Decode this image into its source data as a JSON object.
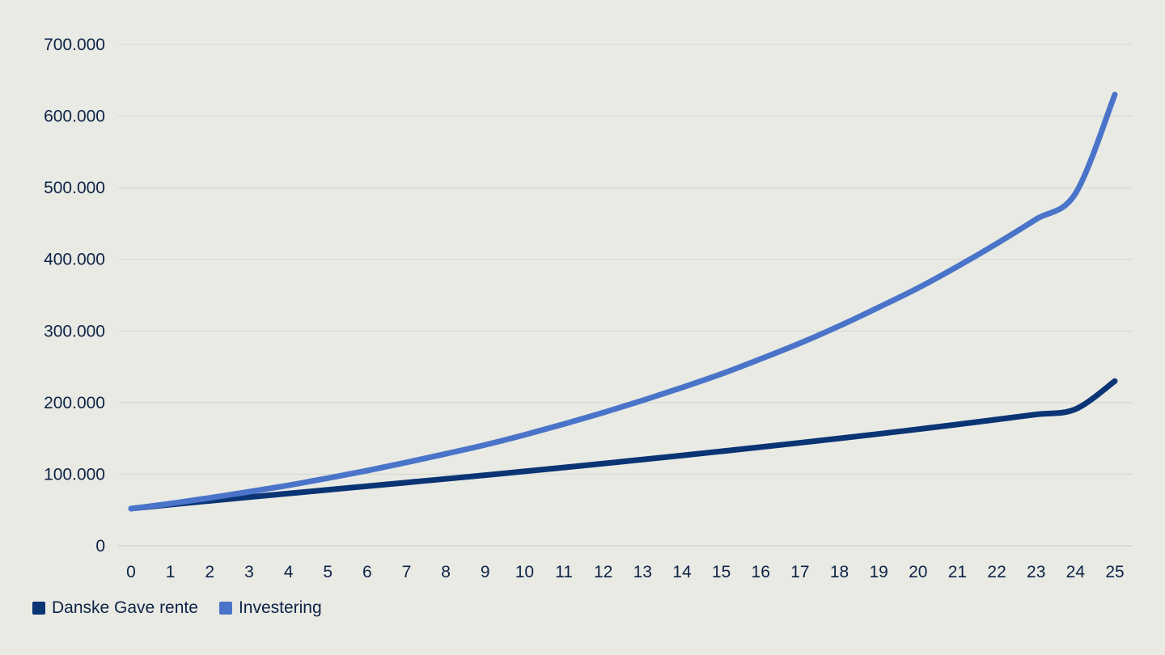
{
  "chart_data": {
    "type": "line",
    "title": "",
    "xlabel": "",
    "ylabel": "",
    "x": [
      0,
      1,
      2,
      3,
      4,
      5,
      6,
      7,
      8,
      9,
      10,
      11,
      12,
      13,
      14,
      15,
      16,
      17,
      18,
      19,
      20,
      21,
      22,
      23,
      24,
      25
    ],
    "x_tick_labels": [
      "0",
      "1",
      "2",
      "3",
      "4",
      "5",
      "6",
      "7",
      "8",
      "9",
      "10",
      "11",
      "12",
      "13",
      "14",
      "15",
      "16",
      "17",
      "18",
      "19",
      "20",
      "21",
      "22",
      "23",
      "24",
      "25"
    ],
    "ylim": [
      0,
      700000
    ],
    "y_ticks": [
      0,
      100000,
      200000,
      300000,
      400000,
      500000,
      600000,
      700000
    ],
    "y_tick_labels": [
      "0",
      "100.000",
      "200.000",
      "300.000",
      "400.000",
      "500.000",
      "600.000",
      "700.000"
    ],
    "grid": true,
    "legend_position": "bottom-left",
    "series": [
      {
        "name": "Danske Gave rente",
        "color": "#0a3474",
        "values": [
          52000,
          57500,
          62800,
          68000,
          73100,
          78200,
          83300,
          88400,
          93500,
          98700,
          104000,
          109400,
          114900,
          120500,
          126200,
          132000,
          137900,
          143900,
          150000,
          156300,
          162800,
          169500,
          176400,
          183500,
          190800,
          230000
        ]
      },
      {
        "name": "Investering",
        "color": "#4a74c9",
        "values": [
          52000,
          59000,
          67000,
          75500,
          84500,
          94500,
          105000,
          116500,
          128500,
          141000,
          155000,
          170000,
          186000,
          203000,
          221000,
          240000,
          261000,
          283000,
          307000,
          333000,
          360000,
          390000,
          422000,
          456000,
          492000,
          630000
        ]
      }
    ]
  }
}
